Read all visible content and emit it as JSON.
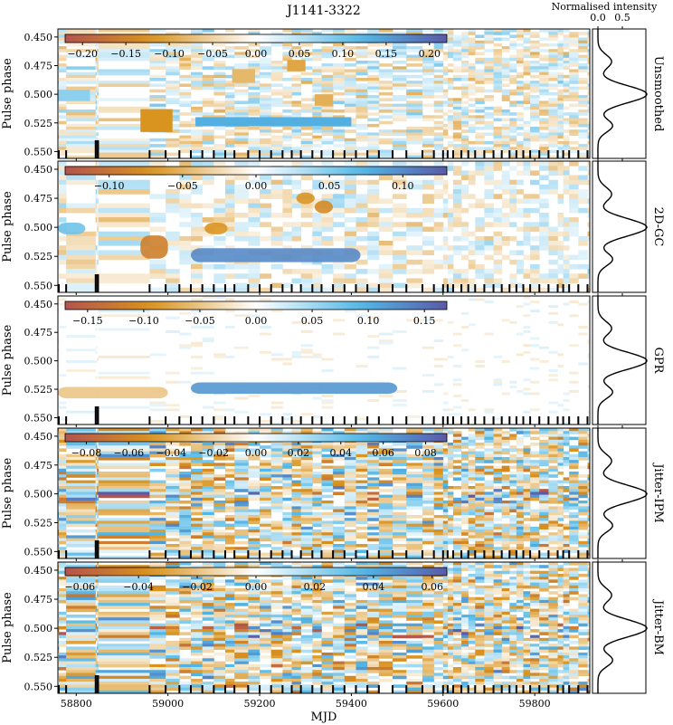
{
  "figure": {
    "title": "J1141-3322",
    "xlabel": "MJD",
    "ylabel": "Pulse phase",
    "profile_label": "Normalised intensity",
    "profile_ticks": [
      "0.0",
      "0.5"
    ],
    "x_ticks": [
      "58800",
      "59000",
      "59200",
      "59400",
      "59600",
      "59800"
    ],
    "y_ticks": [
      "0.450",
      "0.475",
      "0.500",
      "0.525",
      "0.550"
    ]
  },
  "chart_data": [
    {
      "type": "heatmap",
      "panel": "Unsmoothed",
      "xlim": [
        58760,
        59920
      ],
      "ylim": [
        0.556,
        0.443
      ],
      "clim": [
        -0.22,
        0.22
      ],
      "colorbar_ticks": [
        "−0.20",
        "−0.15",
        "−0.10",
        "−0.05",
        "0.00",
        "0.05",
        "0.10",
        "0.15",
        "0.20"
      ],
      "colorbar_values": [
        -0.2,
        -0.15,
        -0.1,
        -0.05,
        0.0,
        0.05,
        0.1,
        0.15,
        0.2
      ],
      "style": "raw",
      "features": [
        {
          "mjd": [
            58940,
            59010
          ],
          "phase": [
            0.513,
            0.533
          ],
          "value": -0.12
        },
        {
          "mjd": [
            59060,
            59400
          ],
          "phase": [
            0.52,
            0.528
          ],
          "value": 0.13
        },
        {
          "mjd": [
            58760,
            58830
          ],
          "phase": [
            0.496,
            0.506
          ],
          "value": 0.08
        },
        {
          "mjd": [
            59140,
            59190
          ],
          "phase": [
            0.478,
            0.49
          ],
          "value": -0.08
        },
        {
          "mjd": [
            59260,
            59300
          ],
          "phase": [
            0.47,
            0.48
          ],
          "value": -0.1
        },
        {
          "mjd": [
            59320,
            59360
          ],
          "phase": [
            0.5,
            0.51
          ],
          "value": -0.09
        }
      ]
    },
    {
      "type": "heatmap",
      "panel": "2D-GC",
      "xlim": [
        58760,
        59920
      ],
      "ylim": [
        0.556,
        0.443
      ],
      "clim": [
        -0.13,
        0.13
      ],
      "colorbar_ticks": [
        "−0.10",
        "−0.05",
        "0.00",
        "0.05",
        "0.10"
      ],
      "colorbar_values": [
        -0.1,
        -0.05,
        0.0,
        0.05,
        0.1
      ],
      "style": "smooth",
      "features": [
        {
          "mjd": [
            58940,
            59000
          ],
          "phase": [
            0.507,
            0.527
          ],
          "value": -0.09
        },
        {
          "mjd": [
            59050,
            59420
          ],
          "phase": [
            0.518,
            0.53
          ],
          "value": 0.1
        },
        {
          "mjd": [
            58760,
            58820
          ],
          "phase": [
            0.496,
            0.506
          ],
          "value": 0.06
        },
        {
          "mjd": [
            59080,
            59130
          ],
          "phase": [
            0.496,
            0.506
          ],
          "value": -0.07
        },
        {
          "mjd": [
            59280,
            59320
          ],
          "phase": [
            0.47,
            0.48
          ],
          "value": -0.07
        },
        {
          "mjd": [
            59320,
            59360
          ],
          "phase": [
            0.477,
            0.488
          ],
          "value": -0.08
        }
      ]
    },
    {
      "type": "heatmap",
      "panel": "GPR",
      "xlim": [
        58760,
        59920
      ],
      "ylim": [
        0.556,
        0.443
      ],
      "clim": [
        -0.17,
        0.17
      ],
      "colorbar_ticks": [
        "−0.15",
        "−0.10",
        "−0.05",
        "0.00",
        "0.05",
        "0.10",
        "0.15"
      ],
      "colorbar_values": [
        -0.15,
        -0.1,
        -0.05,
        0.0,
        0.05,
        0.1,
        0.15
      ],
      "style": "gpr",
      "features": [
        {
          "mjd": [
            58760,
            59000
          ],
          "phase": [
            0.523,
            0.533
          ],
          "value": -0.05
        },
        {
          "mjd": [
            59050,
            59500
          ],
          "phase": [
            0.519,
            0.529
          ],
          "value": 0.12
        }
      ]
    },
    {
      "type": "heatmap",
      "panel": "Jitter-IPM",
      "xlim": [
        58760,
        59920
      ],
      "ylim": [
        0.556,
        0.443
      ],
      "clim": [
        -0.09,
        0.09
      ],
      "colorbar_ticks": [
        "−0.08",
        "−0.06",
        "−0.04",
        "−0.02",
        "0.00",
        "0.02",
        "0.04",
        "0.06",
        "0.08"
      ],
      "colorbar_values": [
        -0.08,
        -0.06,
        -0.04,
        -0.02,
        0.0,
        0.02,
        0.04,
        0.06,
        0.08
      ],
      "style": "jitter",
      "features": []
    },
    {
      "type": "heatmap",
      "panel": "Jitter-BM",
      "xlim": [
        58760,
        59920
      ],
      "ylim": [
        0.556,
        0.443
      ],
      "clim": [
        -0.065,
        0.065
      ],
      "colorbar_ticks": [
        "−0.06",
        "−0.04",
        "−0.02",
        "0.00",
        "0.02",
        "0.04",
        "0.06"
      ],
      "colorbar_values": [
        -0.06,
        -0.04,
        -0.02,
        0.0,
        0.02,
        0.04,
        0.06
      ],
      "style": "jitter",
      "features": []
    }
  ],
  "observation_ticks_mjd": [
    58762,
    58778,
    58842,
    58845,
    58848,
    58960,
    58995,
    59025,
    59050,
    59075,
    59100,
    59125,
    59145,
    59175,
    59200,
    59225,
    59250,
    59270,
    59290,
    59315,
    59335,
    59360,
    59385,
    59410,
    59435,
    59460,
    59490,
    59520,
    59555,
    59580,
    59600,
    59610,
    59622,
    59640,
    59655,
    59670,
    59690,
    59710,
    59728,
    59745,
    59760,
    59775,
    59790,
    59810,
    59830,
    59850,
    59862,
    59875,
    59895,
    59915
  ],
  "profile": {
    "type": "line",
    "xlim": [
      0.0,
      1.05
    ],
    "ylim": [
      0.443,
      0.556
    ],
    "components": [
      {
        "center": 0.4715,
        "amplitude": 0.28,
        "width": 0.006
      },
      {
        "center": 0.5,
        "amplitude": 1.0,
        "width": 0.0075
      },
      {
        "center": 0.5275,
        "amplitude": 0.3,
        "width": 0.0055
      }
    ]
  },
  "colormap": {
    "negative_end": "#b4544d",
    "negative_mid": "#d9931e",
    "center": "#ffffff",
    "positive_mid": "#52b8e6",
    "positive_end": "#5a5aa8"
  }
}
